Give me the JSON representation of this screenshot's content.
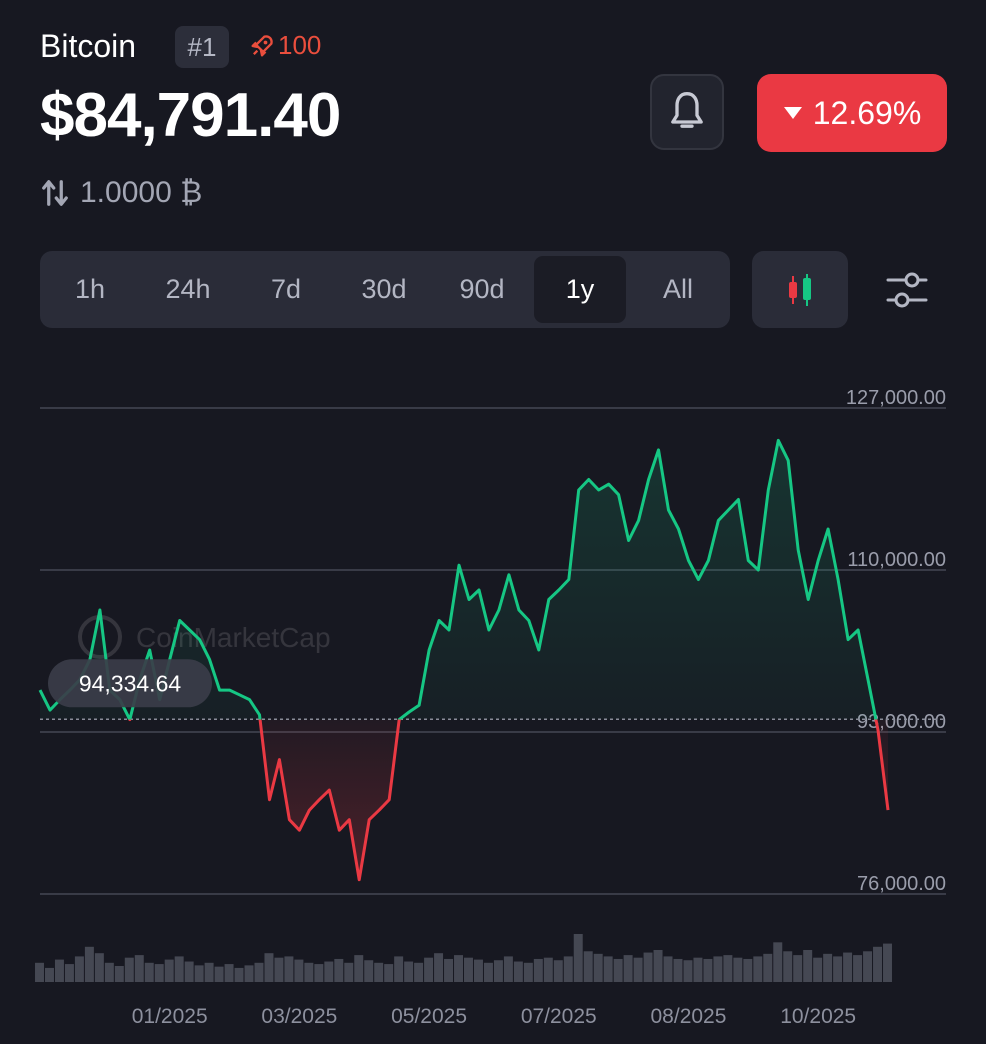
{
  "header": {
    "coin_name": "Bitcoin",
    "rank": "#1",
    "watchlist": "100",
    "price": "$84,791.40",
    "change": "12.69%",
    "conversion": "1.0000 ₿"
  },
  "tabs": {
    "items": [
      "1h",
      "24h",
      "7d",
      "30d",
      "90d",
      "1y",
      "All"
    ],
    "selected": 5
  },
  "chart_data": {
    "type": "line",
    "watermark": "CoinMarketCap",
    "series": [
      {
        "name": "Bitcoin",
        "color_up": "#16c784",
        "color_down": "#ea3943",
        "values": [
          97400,
          95300,
          96400,
          97400,
          98500,
          100600,
          105800,
          97400,
          96400,
          94300,
          98500,
          101600,
          96400,
          100600,
          104700,
          103700,
          102700,
          100600,
          97400,
          97400,
          96900,
          96400,
          94800,
          85900,
          90100,
          83800,
          82700,
          84800,
          85900,
          86900,
          82700,
          83800,
          77500,
          83800,
          84800,
          85900,
          94300,
          95100,
          95800,
          101600,
          104700,
          103700,
          110500,
          106900,
          107900,
          103700,
          105800,
          109500,
          105800,
          104700,
          101600,
          106900,
          107900,
          109000,
          118400,
          119500,
          118400,
          119000,
          117900,
          113100,
          115200,
          119500,
          122600,
          116300,
          114300,
          111000,
          109000,
          111000,
          115200,
          116300,
          117400,
          111000,
          110000,
          118400,
          123600,
          121500,
          112100,
          106900,
          111000,
          114300,
          109000,
          102700,
          103700,
          98500,
          93200,
          84800
        ]
      }
    ],
    "volume": [
      30,
      22,
      35,
      28,
      40,
      55,
      45,
      30,
      25,
      38,
      42,
      30,
      28,
      35,
      40,
      32,
      26,
      30,
      24,
      28,
      22,
      26,
      30,
      45,
      38,
      40,
      35,
      30,
      28,
      32,
      36,
      30,
      42,
      34,
      30,
      28,
      40,
      32,
      30,
      38,
      45,
      36,
      42,
      38,
      35,
      30,
      34,
      40,
      32,
      30,
      36,
      38,
      34,
      40,
      75,
      48,
      44,
      40,
      36,
      42,
      38,
      46,
      50,
      40,
      36,
      34,
      38,
      36,
      40,
      42,
      38,
      36,
      40,
      44,
      62,
      48,
      42,
      50,
      38,
      44,
      40,
      46,
      42,
      48,
      55,
      60
    ],
    "baseline": {
      "value": 94334.64,
      "label": "94,334.64"
    },
    "ylim": [
      76000,
      127000
    ],
    "yticks": [
      {
        "value": 127000,
        "label": "127,000.00"
      },
      {
        "value": 110000,
        "label": "110,000.00"
      },
      {
        "value": 93000,
        "label": "93,000.00"
      },
      {
        "value": 76000,
        "label": "76,000.00"
      }
    ],
    "xlim": [
      0,
      85
    ],
    "xticks": [
      {
        "value": 13,
        "label": "01/2025"
      },
      {
        "value": 26,
        "label": "03/2025"
      },
      {
        "value": 39,
        "label": "05/2025"
      },
      {
        "value": 52,
        "label": "07/2025"
      },
      {
        "value": 65,
        "label": "08/2025"
      },
      {
        "value": 78,
        "label": "10/2025"
      }
    ],
    "grid": true
  }
}
